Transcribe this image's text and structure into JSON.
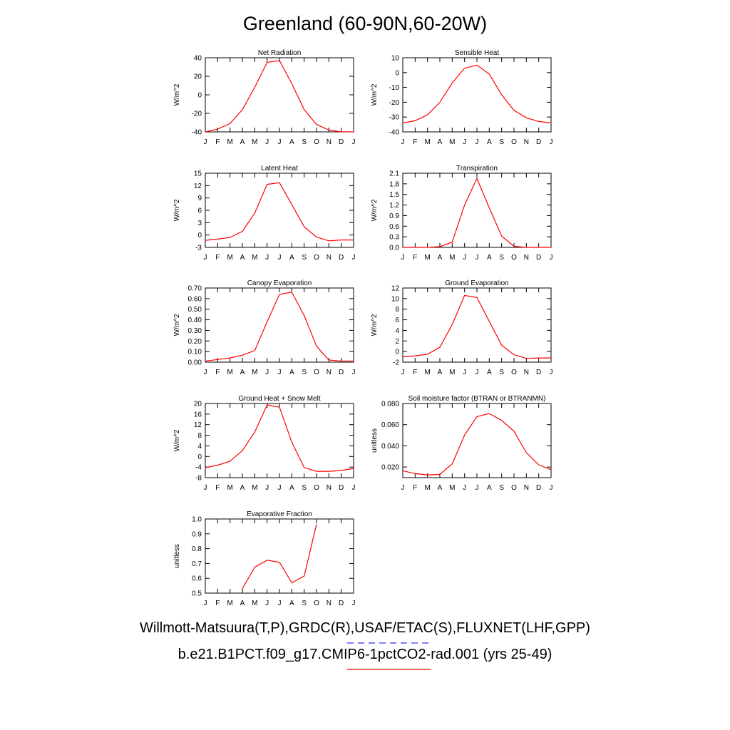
{
  "page": {
    "title": "Greenland (60-90N,60-20W)",
    "legend": [
      {
        "text": "Willmott-Matsuura(T,P),GRDC(R),USAF/ETAC(S),FLUXNET(LHF,GPP)",
        "color": "#3333ff",
        "style": "dashed"
      },
      {
        "text": "b.e21.B1PCT.f09_g17.CMIP6-1pctCO2-rad.001 (yrs 25-49)",
        "color": "#ff0000",
        "style": "solid"
      }
    ]
  },
  "colors": {
    "model_line": "#ff0000",
    "obs_line": "#3333ff"
  },
  "chart_data": [
    {
      "type": "line",
      "title": "Net Radiation",
      "ylabel": "W/m^2",
      "categories": [
        "J",
        "F",
        "M",
        "A",
        "M",
        "J",
        "J",
        "A",
        "S",
        "O",
        "N",
        "D",
        "J"
      ],
      "ylim": [
        -40,
        40
      ],
      "yticks": [
        "40",
        "20",
        "0",
        "-20",
        "-40"
      ],
      "values": [
        -40,
        -37,
        -31,
        -16,
        8,
        35,
        37,
        12,
        -16,
        -32,
        -38,
        -40,
        -40
      ]
    },
    {
      "type": "line",
      "title": "Sensible Heat",
      "ylabel": "W/m^2",
      "categories": [
        "J",
        "F",
        "M",
        "A",
        "M",
        "J",
        "J",
        "A",
        "S",
        "O",
        "N",
        "D",
        "J"
      ],
      "ylim": [
        -40,
        10
      ],
      "yticks": [
        "10",
        "0",
        "-10",
        "-20",
        "-30",
        "-40"
      ],
      "values": [
        -34,
        -32.5,
        -28.5,
        -20,
        -7,
        3,
        5,
        -1,
        -15,
        -25.5,
        -30.5,
        -33,
        -34
      ]
    },
    {
      "type": "line",
      "title": "Latent Heat",
      "ylabel": "W/m^2",
      "categories": [
        "J",
        "F",
        "M",
        "A",
        "M",
        "J",
        "J",
        "A",
        "S",
        "O",
        "N",
        "D",
        "J"
      ],
      "ylim": [
        -3,
        15
      ],
      "yticks": [
        "15",
        "12",
        "9",
        "6",
        "3",
        "0",
        "-3"
      ],
      "values": [
        -1.3,
        -1.0,
        -0.6,
        0.9,
        5.3,
        12.3,
        12.7,
        7.4,
        2.0,
        -0.5,
        -1.4,
        -1.2,
        -1.2
      ]
    },
    {
      "type": "line",
      "title": "Transpiration",
      "ylabel": "W/m^2",
      "categories": [
        "J",
        "F",
        "M",
        "A",
        "M",
        "J",
        "J",
        "A",
        "S",
        "O",
        "N",
        "D",
        "J"
      ],
      "ylim": [
        0,
        2.1
      ],
      "yticks": [
        "2.1",
        "1.8",
        "1.5",
        "1.2",
        "0.9",
        "0.6",
        "0.3",
        "0.0"
      ],
      "values": [
        0.0,
        0.0,
        0.0,
        0.02,
        0.15,
        1.2,
        1.95,
        1.12,
        0.32,
        0.03,
        0.0,
        0.0,
        0.0
      ]
    },
    {
      "type": "line",
      "title": "Canopy Evaporation",
      "ylabel": "W/m^2",
      "categories": [
        "J",
        "F",
        "M",
        "A",
        "M",
        "J",
        "J",
        "A",
        "S",
        "O",
        "N",
        "D",
        "J"
      ],
      "ylim": [
        0,
        0.7
      ],
      "yticks": [
        "0.70",
        "0.60",
        "0.50",
        "0.40",
        "0.30",
        "0.20",
        "0.10",
        "0.00"
      ],
      "values": [
        0.01,
        0.025,
        0.04,
        0.065,
        0.11,
        0.38,
        0.64,
        0.66,
        0.44,
        0.15,
        0.02,
        0.01,
        0.01
      ]
    },
    {
      "type": "line",
      "title": "Ground Evaporation",
      "ylabel": "W/m^2",
      "categories": [
        "J",
        "F",
        "M",
        "A",
        "M",
        "J",
        "J",
        "A",
        "S",
        "O",
        "N",
        "D",
        "J"
      ],
      "ylim": [
        -2,
        12
      ],
      "yticks": [
        "12",
        "10",
        "8",
        "6",
        "4",
        "2",
        "0",
        "-2"
      ],
      "values": [
        -1.0,
        -0.8,
        -0.5,
        0.8,
        5.1,
        10.6,
        10.2,
        5.7,
        1.2,
        -0.6,
        -1.3,
        -1.2,
        -1.2
      ]
    },
    {
      "type": "line",
      "title": "Ground Heat + Snow Melt",
      "ylabel": "W/m^2",
      "categories": [
        "J",
        "F",
        "M",
        "A",
        "M",
        "J",
        "J",
        "A",
        "S",
        "O",
        "N",
        "D",
        "J"
      ],
      "ylim": [
        -8,
        20
      ],
      "yticks": [
        "20",
        "16",
        "12",
        "8",
        "4",
        "0",
        "-4",
        "-8"
      ],
      "values": [
        -4.2,
        -3.3,
        -1.8,
        2.2,
        9.2,
        19.5,
        18.6,
        5.4,
        -4.2,
        -5.6,
        -5.6,
        -5.3,
        -4.5
      ]
    },
    {
      "type": "line",
      "title": "Soil moisture factor (BTRAN or BTRANMN)",
      "ylabel": "unitless",
      "categories": [
        "J",
        "F",
        "M",
        "A",
        "M",
        "J",
        "J",
        "A",
        "S",
        "O",
        "N",
        "D",
        "J"
      ],
      "ylim": [
        0.01,
        0.08
      ],
      "yticks": [
        "0.080",
        "0.060",
        "0.040",
        "0.020"
      ],
      "yticks_values": [
        0.08,
        0.06,
        0.04,
        0.02
      ],
      "values": [
        0.0165,
        0.0138,
        0.0126,
        0.013,
        0.023,
        0.0502,
        0.0676,
        0.0705,
        0.064,
        0.0538,
        0.0336,
        0.0221,
        0.0175
      ]
    },
    {
      "type": "line",
      "title": "Evaporative Fraction",
      "ylabel": "unitless",
      "categories": [
        "J",
        "F",
        "M",
        "A",
        "M",
        "J",
        "J",
        "A",
        "S",
        "O",
        "N",
        "D",
        "J"
      ],
      "ylim": [
        0.5,
        1.0
      ],
      "yticks": [
        "1.0",
        "0.9",
        "0.8",
        "0.7",
        "0.6",
        "0.5"
      ],
      "values": [
        null,
        null,
        null,
        0.53,
        0.675,
        0.722,
        0.708,
        0.57,
        0.615,
        0.965,
        null,
        null,
        null
      ]
    }
  ]
}
